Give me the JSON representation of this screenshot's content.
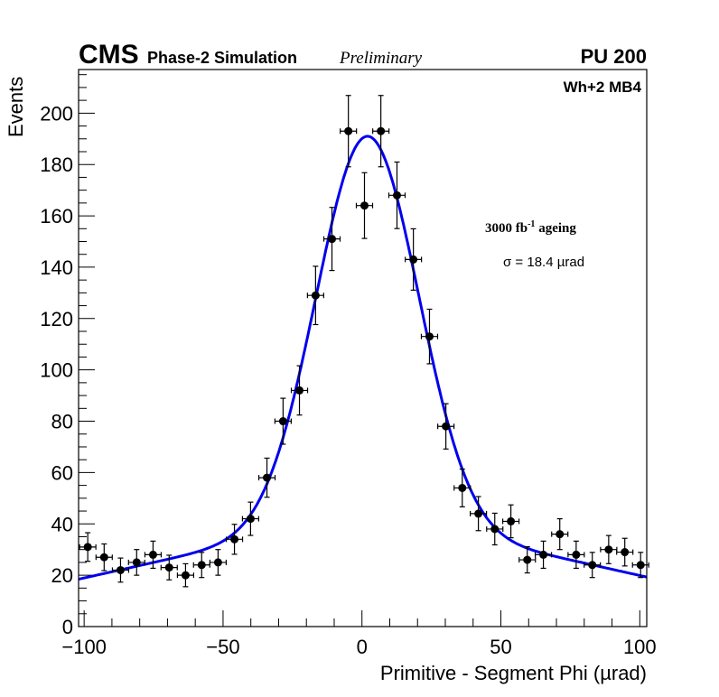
{
  "chart_data": {
    "type": "scatter",
    "title": "",
    "header": {
      "experiment": "CMS",
      "subtitle": "Phase-2 Simulation",
      "status": "Preliminary",
      "pileup": "PU 200"
    },
    "annotations": {
      "chamber": "Wh+2 MB4",
      "ageing_main": "3000 fb",
      "ageing_sup": "-1",
      "ageing_tail": " ageing",
      "sigma": "σ = 18.4 µrad"
    },
    "xlabel": "Primitive - Segment Phi (µrad)",
    "ylabel": "Events",
    "xlim": [
      -102,
      102.5
    ],
    "ylim": [
      0,
      217
    ],
    "xticks": [
      -100,
      -50,
      0,
      50,
      100
    ],
    "xtick_labels": [
      "−100",
      "−50",
      "0",
      "50",
      "100"
    ],
    "yticks": [
      0,
      20,
      40,
      60,
      80,
      100,
      120,
      140,
      160,
      180,
      200
    ],
    "ytick_labels": [
      "0",
      "20",
      "40",
      "60",
      "80",
      "100",
      "120",
      "140",
      "160",
      "180",
      "200"
    ],
    "grid": false,
    "legend": "none",
    "bin_width": 5.85,
    "series": [
      {
        "name": "Simulation",
        "style": "points-with-errorbars",
        "color": "#000000",
        "x": [
          -98.7,
          -92.8,
          -86.9,
          -81.1,
          -75.2,
          -69.4,
          -63.5,
          -57.7,
          -51.8,
          -45.9,
          -40.1,
          -34.2,
          -28.4,
          -22.5,
          -16.7,
          -10.8,
          -4.9,
          0.9,
          6.8,
          12.6,
          18.5,
          24.3,
          30.2,
          36.1,
          41.9,
          47.8,
          53.6,
          59.5,
          65.3,
          71.2,
          77.1,
          82.9,
          88.8,
          94.6,
          100.3
        ],
        "values": [
          31,
          27,
          22,
          25,
          28,
          23,
          20,
          24,
          25,
          34,
          42,
          58,
          80,
          92,
          129,
          151,
          193,
          164,
          193,
          168,
          143,
          113,
          78,
          54,
          44,
          38,
          41,
          26,
          28,
          36,
          28,
          24,
          30,
          29,
          24
        ]
      },
      {
        "name": "Fit",
        "style": "line",
        "color": "#0000ee",
        "model": "double-gaussian",
        "params": {
          "A_narrow": 155,
          "mean": 2,
          "sigma_narrow": 18.4,
          "A_broad": 36,
          "sigma_broad": 90
        }
      }
    ]
  }
}
